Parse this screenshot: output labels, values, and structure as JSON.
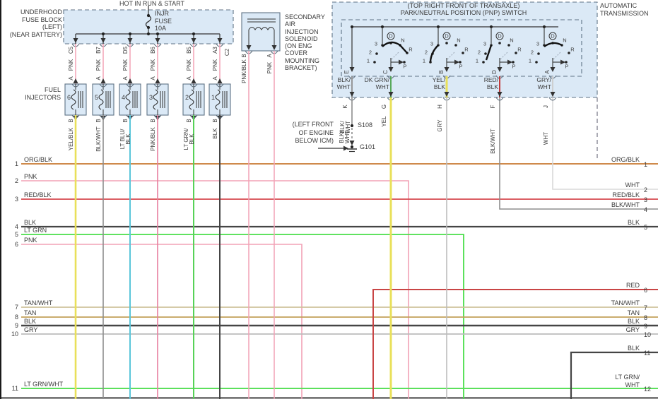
{
  "colors": {
    "blue_fill": "#dbe9f6",
    "pnk": "#f2a2b6",
    "yel": "#e9e05a",
    "blkwht": "#8d8d8d",
    "ltblu": "#5ac6da",
    "pnkblk": "#e87f9e",
    "ltgrn_blk": "#57d257",
    "blk": "#454545",
    "org_blk": "#cf8a4b",
    "red_blk": "#d6494f",
    "ltgrn": "#4ade4a",
    "tanwht": "#cfc29b",
    "tan": "#c2a159",
    "gry": "#bcbcbc",
    "wht": "#d9d9d9",
    "red": "#c94545",
    "dkgrnwht": "#4aa24a",
    "grywht": "#cccccc",
    "ltgrnwht": "#5ce05c",
    "redblk_stub": "#c03a3a"
  },
  "fuse_block": {
    "header": "HOT IN RUN & START",
    "name_lines": [
      "UNDERHOOD",
      "FUSE BLOCK",
      "(LEFT)",
      "(NEAR BATTERY)"
    ],
    "fuse_lines": [
      "INJR",
      "FUSE",
      "10A"
    ],
    "pins": [
      "C5",
      "B7",
      "D5",
      "B6",
      "B5",
      "A3"
    ],
    "pin_extra": "C2",
    "wire": "PNK"
  },
  "injectors": {
    "label_lines": [
      "FUEL",
      "INJECTORS"
    ],
    "pin_top": "A",
    "pin_bottom": "B",
    "items": [
      {
        "num": "6",
        "wire": "YEL/BLK"
      },
      {
        "num": "5",
        "wire": "BLK/WHT"
      },
      {
        "num": "4",
        "wire": "LT BLU/\nBLK"
      },
      {
        "num": "3",
        "wire": "PNK/BLK"
      },
      {
        "num": "2",
        "wire": "LT GRN/\nBLK"
      },
      {
        "num": "1",
        "wire": "BLK"
      }
    ]
  },
  "solenoid": {
    "label_lines": [
      "SECONDARY",
      "AIR",
      "INJECTION",
      "SOLENOID",
      "(ON ENG",
      "COVER",
      "MOUNTING",
      "BRACKET)"
    ],
    "wires": [
      {
        "color": "PNK/BLK",
        "pin": "B"
      },
      {
        "color": "PNK",
        "pin": "A"
      }
    ]
  },
  "pnp": {
    "title1": "(TOP RIGHT FRONT OF TRANSAXLE)",
    "title2": "PARK/NEUTRAL POSITION (PNP) SWITCH",
    "outer_lines": [
      "AUTOMATIC",
      "TRANSMISSION"
    ],
    "contact_labels": {
      "c1": "1",
      "c2": "2",
      "c3": "3",
      "d": "D",
      "n": "N",
      "r": "R",
      "p": "P"
    },
    "connector": [
      {
        "pin": "E",
        "color": "BLK/\nWHT"
      },
      {
        "pin": "C",
        "color": "DK GRN/\nWHT"
      },
      {
        "pin": "B",
        "color": "YEL/\nBLK"
      },
      {
        "pin": "D",
        "color": "RED/\nBLK"
      },
      {
        "pin": "A",
        "color": "GRY/\nWHT"
      }
    ],
    "harness": [
      {
        "pin": "K",
        "color": "BLK/\nWHT"
      },
      {
        "pin": "G",
        "color": "YEL"
      },
      {
        "pin": "H",
        "color": "GRY"
      },
      {
        "pin": "F",
        "color": "BLK/WHT"
      },
      {
        "pin": "J",
        "color": "WHT"
      }
    ]
  },
  "ground": {
    "splice": "S108",
    "wire": "BLK/\nWHT",
    "gnd": "G101",
    "note_lines": [
      "(LEFT FRONT",
      "OF ENGINE",
      "BELOW ICM)"
    ]
  },
  "left_wires": [
    {
      "num": "1",
      "label": "ORG/BLK"
    },
    {
      "num": "2",
      "label": "PNK"
    },
    {
      "num": "3",
      "label": "RED/BLK"
    },
    {
      "num": "4",
      "label": "BLK"
    },
    {
      "num": "5",
      "label": "LT GRN"
    },
    {
      "num": "6",
      "label": "PNK"
    },
    {
      "num": "7",
      "label": "TAN/WHT"
    },
    {
      "num": "8",
      "label": "TAN"
    },
    {
      "num": "9",
      "label": "BLK"
    },
    {
      "num": "10",
      "label": "GRY"
    },
    {
      "num": "11",
      "label": "LT GRN/WHT"
    }
  ],
  "right_wires": [
    {
      "num": "1",
      "label": "ORG/BLK"
    },
    {
      "num": "2",
      "label": "WHT"
    },
    {
      "num": "3",
      "label": "RED/BLK"
    },
    {
      "num": "4",
      "label": "BLK/WHT"
    },
    {
      "num": "5",
      "label": "BLK"
    },
    {
      "num": "6",
      "label": "RED"
    },
    {
      "num": "7",
      "label": "TAN/WHT"
    },
    {
      "num": "8",
      "label": "TAN"
    },
    {
      "num": "9",
      "label": "BLK"
    },
    {
      "num": "10",
      "label": "GRY"
    },
    {
      "num": "11",
      "label": "BLK"
    },
    {
      "num": "12",
      "label": "LT GRN/\nWHT"
    }
  ]
}
